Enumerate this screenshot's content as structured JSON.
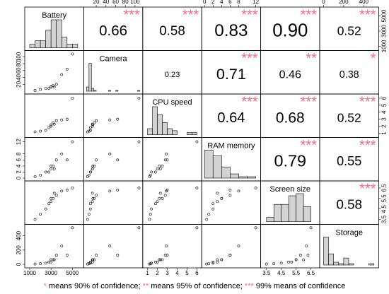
{
  "chart_data": {
    "type": "correlation_matrix",
    "hist_color": "#d3d3d3",
    "star_color": "#e8708a",
    "point_color": "#000000",
    "variables": [
      {
        "name": "Battery",
        "lim": [
          800,
          5800
        ],
        "ticks": [
          1000,
          3000,
          5000
        ],
        "bins": [
          1000,
          1500,
          2000,
          2500,
          3000,
          3500,
          4000,
          4500,
          5000,
          5500
        ],
        "counts": [
          1,
          2,
          2,
          5,
          8,
          8,
          3,
          1,
          1
        ]
      },
      {
        "name": "Camera",
        "lim": [
          0,
          110
        ],
        "ticks": [
          20,
          40,
          60,
          80,
          100
        ],
        "bins": [
          0,
          5,
          10,
          15,
          20,
          25,
          30,
          35,
          40,
          45,
          50,
          55,
          60,
          65,
          70,
          75,
          80,
          85,
          90,
          95,
          100,
          105,
          110
        ],
        "counts": [
          6,
          40,
          4,
          1,
          0,
          0,
          0,
          0,
          0,
          1,
          0,
          0,
          1,
          0,
          0,
          0,
          0,
          0,
          0,
          0,
          0,
          1
        ]
      },
      {
        "name": "CPU speed",
        "lim": [
          0.8,
          6.2
        ],
        "ticks": [
          1,
          2,
          3,
          4,
          5,
          6
        ],
        "bins": [
          1,
          1.5,
          2,
          2.5,
          3,
          3.5,
          4,
          4.5,
          5,
          5.5,
          6
        ],
        "counts": [
          3,
          14,
          10,
          6,
          3,
          2,
          0,
          0,
          1,
          1
        ]
      },
      {
        "name": "RAM memory",
        "lim": [
          0,
          12.5
        ],
        "ticks": [
          0,
          2,
          4,
          6,
          8,
          12
        ],
        "bins": [
          0,
          2,
          4,
          6,
          8,
          10,
          12
        ],
        "counts": [
          20,
          16,
          8,
          3,
          1,
          1
        ]
      },
      {
        "name": "Screen size",
        "lim": [
          3.3,
          6.9
        ],
        "ticks": [
          3.5,
          4.5,
          5.5,
          6.5
        ],
        "bins": [
          3.5,
          4,
          4.5,
          5,
          5.5,
          6,
          6.5
        ],
        "counts": [
          2,
          8,
          8,
          12,
          13,
          7
        ]
      },
      {
        "name": "Storage",
        "lim": [
          -10,
          520
        ],
        "ticks": [
          0,
          200,
          400
        ],
        "bins": [
          0,
          50,
          100,
          150,
          200,
          250,
          300,
          350,
          400,
          450,
          500
        ],
        "counts": [
          20,
          8,
          2,
          1,
          5,
          1,
          0,
          0,
          0,
          1
        ]
      }
    ],
    "correlations": [
      [
        null,
        0.66,
        0.58,
        0.83,
        0.9,
        0.52
      ],
      [
        null,
        null,
        0.23,
        0.71,
        0.46,
        0.38
      ],
      [
        null,
        null,
        null,
        0.64,
        0.68,
        0.52
      ],
      [
        null,
        null,
        null,
        null,
        0.79,
        0.55
      ],
      [
        null,
        null,
        null,
        null,
        null,
        0.58
      ],
      [
        null,
        null,
        null,
        null,
        null,
        null
      ]
    ],
    "correlation_labels": [
      [
        null,
        "0.66",
        "0.58",
        "0.83",
        "0.90",
        "0.52"
      ],
      [
        null,
        null,
        "0.23",
        "0.71",
        "0.46",
        "0.38"
      ],
      [
        null,
        null,
        null,
        "0.64",
        "0.68",
        "0.52"
      ],
      [
        null,
        null,
        null,
        null,
        "0.79",
        "0.55"
      ],
      [
        null,
        null,
        null,
        null,
        null,
        "0.58"
      ],
      [
        null,
        null,
        null,
        null,
        null,
        null
      ]
    ],
    "stars": [
      [
        null,
        "***",
        "***",
        "***",
        "***",
        "***"
      ],
      [
        null,
        null,
        null,
        "***",
        "**",
        "*"
      ],
      [
        null,
        null,
        null,
        "***",
        "***",
        "***"
      ],
      [
        null,
        null,
        null,
        null,
        "***",
        "***"
      ],
      [
        null,
        null,
        null,
        null,
        null,
        "***"
      ],
      [
        null,
        null,
        null,
        null,
        null,
        null
      ]
    ],
    "observations": [
      [
        1500,
        2,
        1.2,
        0.5,
        3.5,
        4
      ],
      [
        2000,
        5,
        1.3,
        1,
        4.0,
        8
      ],
      [
        2500,
        8,
        1.4,
        2,
        4.5,
        16
      ],
      [
        2800,
        8,
        1.8,
        2,
        5.0,
        32
      ],
      [
        3000,
        12,
        2.0,
        3,
        5.2,
        32
      ],
      [
        3000,
        13,
        2.2,
        4,
        5.5,
        64
      ],
      [
        3200,
        16,
        2.5,
        4,
        5.5,
        64
      ],
      [
        3300,
        12,
        2.3,
        3,
        6.0,
        64
      ],
      [
        3500,
        20,
        2.8,
        6,
        5.8,
        128
      ],
      [
        4000,
        48,
        2.9,
        8,
        6.2,
        256
      ],
      [
        4500,
        64,
        3.0,
        6,
        6.3,
        128
      ],
      [
        5000,
        108,
        6.0,
        12,
        6.5,
        512
      ]
    ],
    "notes": [
      {
        "stars": "*",
        "text": " means 90% of confidence; "
      },
      {
        "stars": "**",
        "text": " means 95% of confidence; "
      },
      {
        "stars": "***",
        "text": " 99% means of confidence"
      }
    ]
  }
}
